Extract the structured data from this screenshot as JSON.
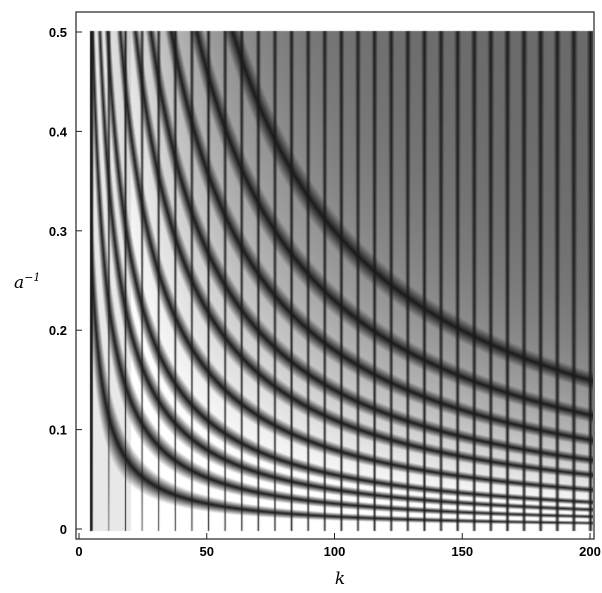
{
  "chart_data": {
    "type": "heatmap",
    "title": "",
    "xlabel": "k",
    "ylabel_base": "a",
    "ylabel_exponent": "−1",
    "xlim": [
      0,
      200
    ],
    "ylim": [
      0,
      0.5
    ],
    "x_ticks": [
      0,
      50,
      100,
      150,
      200
    ],
    "x_tick_labels": [
      "0",
      "50",
      "100",
      "150",
      "200"
    ],
    "y_ticks": [
      0,
      0.1,
      0.2,
      0.3,
      0.4,
      0.5
    ],
    "y_tick_labels": [
      "0",
      "0.1",
      "0.2",
      "0.3",
      "0.4",
      "0.5"
    ],
    "grid": false,
    "legend": "none",
    "colormap": {
      "low": "#1a1a1a",
      "high": "#ffffff"
    },
    "pattern": {
      "vertical_dark_lines_k_start": 5,
      "vertical_dark_lines_k_spacing": 6.5,
      "curve_constants": [
        1.3,
        2.6,
        4.0,
        5.5,
        8.0,
        11.0,
        14.0,
        18.0,
        23.0,
        30.0
      ]
    }
  }
}
